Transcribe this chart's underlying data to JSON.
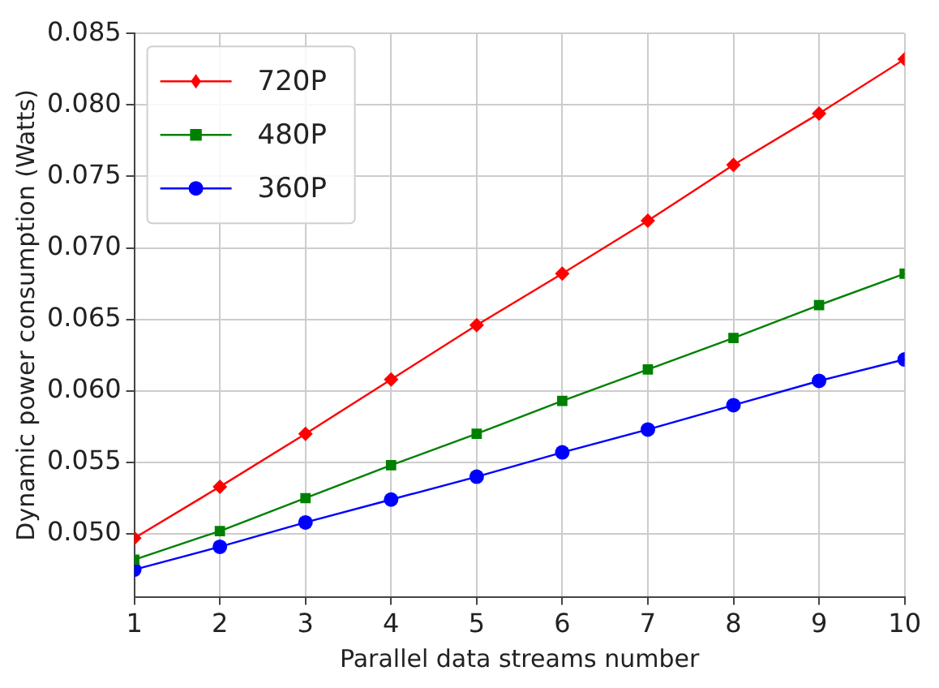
{
  "chart_data": {
    "type": "line",
    "xlabel": "Parallel data streams number",
    "ylabel": "Dynamic power consumption (Watts)",
    "x": [
      1,
      2,
      3,
      4,
      5,
      6,
      7,
      8,
      9,
      10
    ],
    "series": [
      {
        "name": "720P",
        "color": "#ff0000",
        "marker": "diamond",
        "values": [
          0.0497,
          0.0533,
          0.057,
          0.0608,
          0.0646,
          0.0682,
          0.0719,
          0.0758,
          0.0794,
          0.0832
        ]
      },
      {
        "name": "480P",
        "color": "#008000",
        "marker": "square",
        "values": [
          0.0482,
          0.0502,
          0.0525,
          0.0548,
          0.057,
          0.0593,
          0.0615,
          0.0637,
          0.066,
          0.0682
        ]
      },
      {
        "name": "360P",
        "color": "#0000ff",
        "marker": "circle",
        "values": [
          0.0475,
          0.0491,
          0.0508,
          0.0524,
          0.054,
          0.0557,
          0.0573,
          0.059,
          0.0607,
          0.0622
        ]
      }
    ],
    "xlim": [
      1,
      10
    ],
    "xticks": [
      1,
      2,
      3,
      4,
      5,
      6,
      7,
      8,
      9,
      10
    ],
    "ylim": [
      0.0456,
      0.085
    ],
    "yticks": [
      {
        "value": 0.05,
        "label": "0.050"
      },
      {
        "value": 0.055,
        "label": "0.055"
      },
      {
        "value": 0.06,
        "label": "0.060"
      },
      {
        "value": 0.065,
        "label": "0.065"
      },
      {
        "value": 0.07,
        "label": "0.070"
      },
      {
        "value": 0.075,
        "label": "0.075"
      },
      {
        "value": 0.08,
        "label": "0.080"
      },
      {
        "value": 0.085,
        "label": "0.085"
      }
    ],
    "grid": true,
    "legend": "top left",
    "line_style": "solid"
  }
}
